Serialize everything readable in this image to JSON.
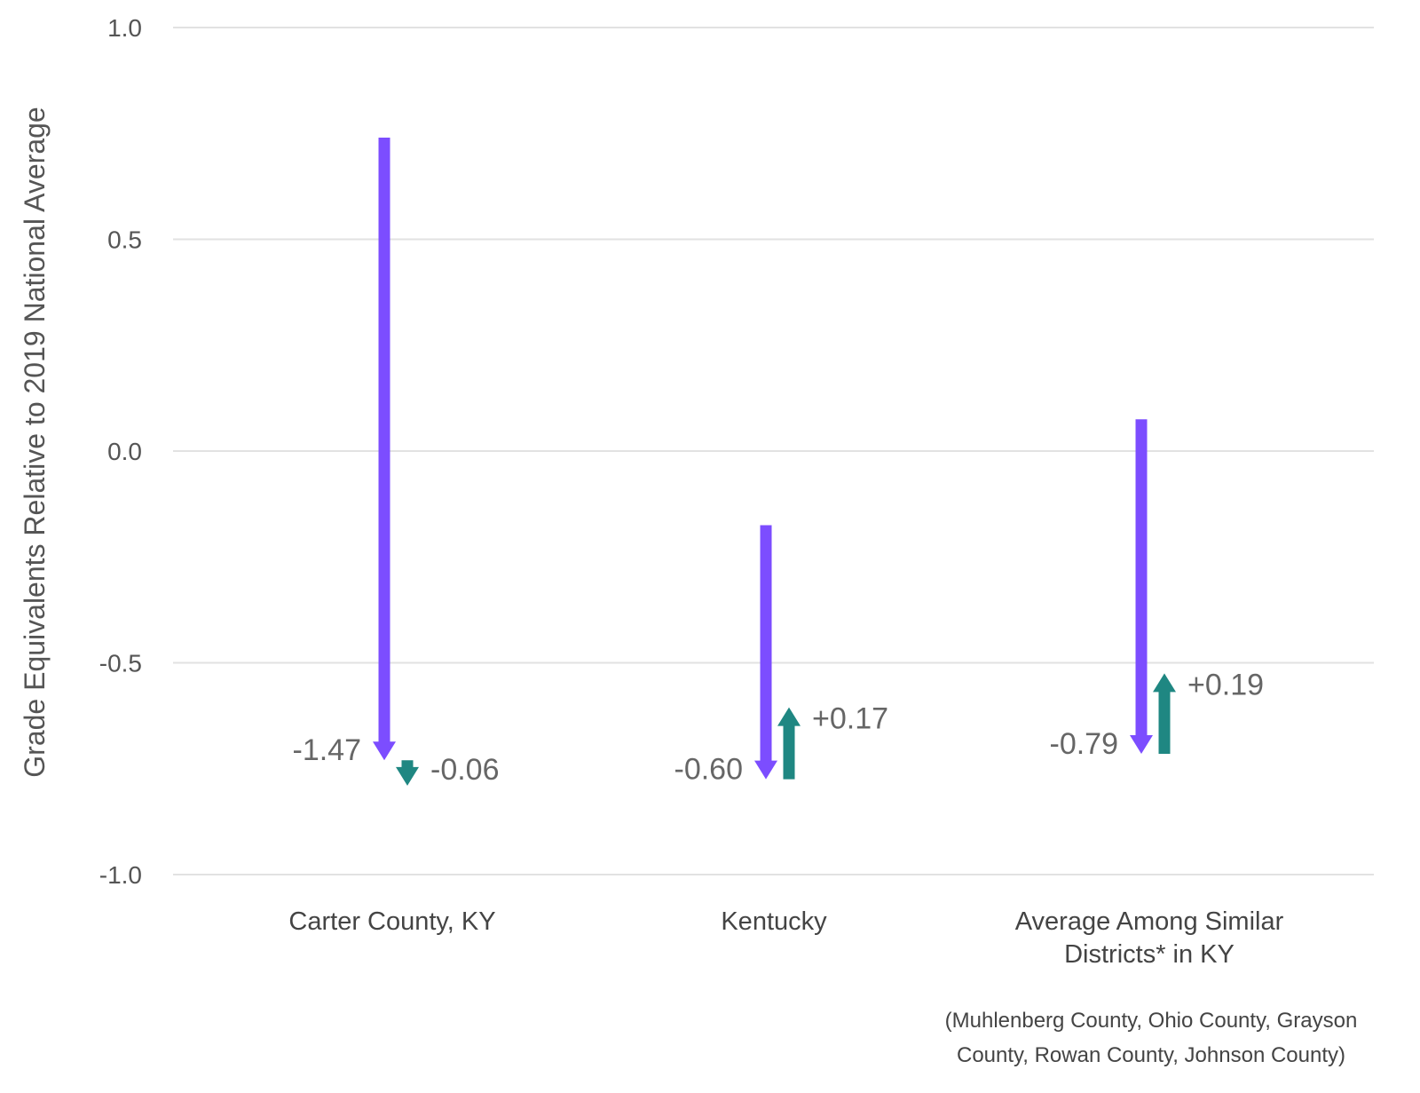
{
  "chart_data": {
    "type": "arrow",
    "ylabel": "Grade Equivalents Relative to 2019 National Average",
    "xlabel": "",
    "ylim": [
      -1.0,
      1.0
    ],
    "yticks": [
      1.0,
      0.5,
      0.0,
      -0.5,
      -1.0
    ],
    "ytick_labels": [
      "1.0",
      "0.5",
      "0.0",
      "-0.5",
      "-1.0"
    ],
    "grid": true,
    "categories": [
      {
        "lines": [
          "Carter County, KY"
        ],
        "decline": {
          "from": 0.74,
          "to": -0.73,
          "label": "-1.47"
        },
        "recovery": {
          "from": -0.73,
          "to": -0.79,
          "label": "-0.06"
        }
      },
      {
        "lines": [
          "Kentucky"
        ],
        "decline": {
          "from": -0.175,
          "to": -0.775,
          "label": "-0.60"
        },
        "recovery": {
          "from": -0.775,
          "to": -0.605,
          "label": "+0.17"
        }
      },
      {
        "lines": [
          "Average Among Similar",
          "Districts* in KY"
        ],
        "decline": {
          "from": 0.075,
          "to": -0.715,
          "label": "-0.79"
        },
        "recovery": {
          "from": -0.715,
          "to": -0.525,
          "label": "+0.19"
        }
      }
    ],
    "colors": {
      "decline": "#7c4dff",
      "recovery": "#1f8782",
      "grid": "#e2e2e2"
    },
    "footnote": [
      "(Muhlenberg County, Ohio County, Grayson",
      "County, Rowan County, Johnson County)"
    ]
  }
}
